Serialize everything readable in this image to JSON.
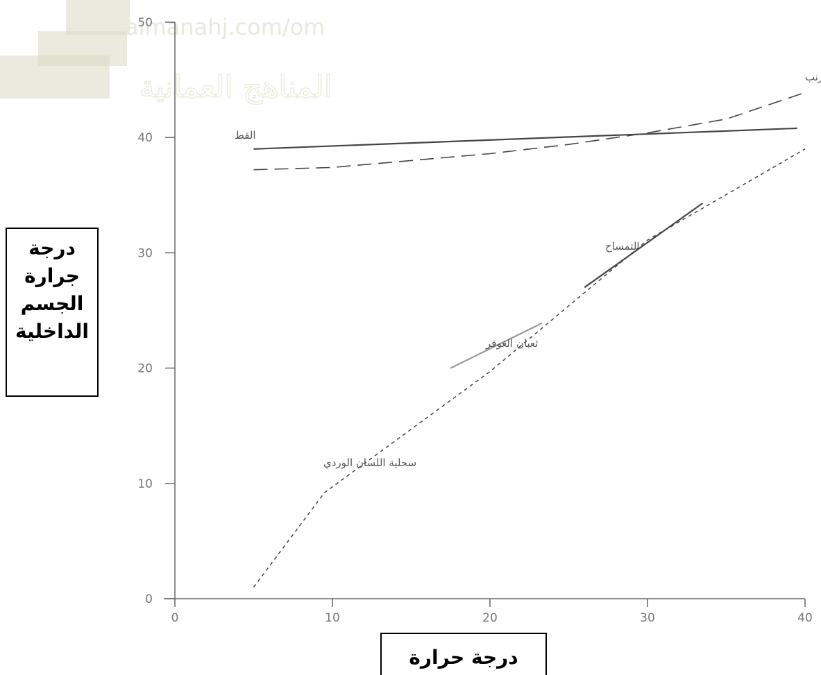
{
  "watermark": {
    "url_text": "almanahj.com/om",
    "arabic_text": "المناهج العمانية"
  },
  "chart_data": {
    "type": "line",
    "title": "",
    "xlabel": "درجة حرارة",
    "ylabel": "درجة جرارة الجسم الداخلية",
    "xlim": [
      0,
      40
    ],
    "ylim": [
      0,
      50
    ],
    "x_ticks": [
      "0",
      "10",
      "20",
      "30",
      "40"
    ],
    "y_ticks": [
      "0",
      "10",
      "20",
      "30",
      "40",
      "50"
    ],
    "grid": false,
    "series": [
      {
        "name": "القط",
        "style": "solid",
        "color": "#444444",
        "points": [
          [
            5,
            39
          ],
          [
            39.5,
            40.8
          ]
        ]
      },
      {
        "name": "الأرنب",
        "style": "dashed",
        "color": "#444444",
        "points": [
          [
            5,
            37.2
          ],
          [
            10,
            37.4
          ],
          [
            15,
            38
          ],
          [
            20,
            38.6
          ],
          [
            25,
            39.4
          ],
          [
            30,
            40.4
          ],
          [
            35,
            41.6
          ],
          [
            40,
            43.9
          ]
        ]
      },
      {
        "name": "التمساح",
        "style": "solid",
        "color": "#444444",
        "points": [
          [
            26,
            27
          ],
          [
            33.5,
            34.3
          ]
        ]
      },
      {
        "name": "ثعبان الغوفر",
        "style": "solid",
        "color": "#999999",
        "points": [
          [
            17.5,
            20
          ],
          [
            23.3,
            23.9
          ]
        ]
      },
      {
        "name": "سحلية اللسان الوردي",
        "style": "dotted",
        "color": "#444444",
        "points": [
          [
            5,
            1
          ],
          [
            9.5,
            9.2
          ],
          [
            20,
            19.7
          ],
          [
            30,
            31.1
          ],
          [
            40,
            39
          ]
        ]
      }
    ]
  }
}
